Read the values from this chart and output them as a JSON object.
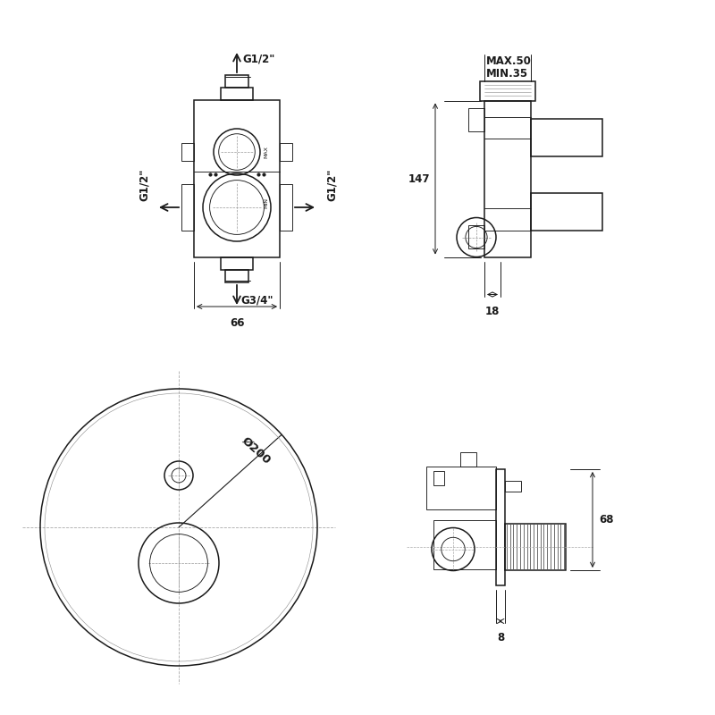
{
  "bg_color": "#ffffff",
  "lc": "#1a1a1a",
  "fig_width": 8.0,
  "fig_height": 8.0,
  "dpi": 100,
  "labels": {
    "g12": "G1/2\"",
    "g34": "G3/4\"",
    "dim66": "66",
    "max50": "MAX.50",
    "min35": "MIN.35",
    "dim147": "147",
    "dim18": "18",
    "diam200": "Ø200",
    "dim68": "68",
    "dim8": "8"
  }
}
